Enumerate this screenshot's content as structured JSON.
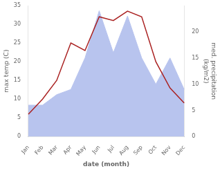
{
  "chart_data": {
    "type": "line",
    "categories": [
      "Jan",
      "Feb",
      "Mar",
      "Apr",
      "May",
      "Jun",
      "Jul",
      "Aug",
      "Sep",
      "Oct",
      "Nov",
      "Dec"
    ],
    "xlabel": "date (month)",
    "ylabel": "max temp (C)",
    "y2label": "med. precipitation\n(kg/m2)",
    "series": [
      {
        "type": "area",
        "color": "#b8c4ee",
        "axis": "y2",
        "values": [
          6.0,
          6.0,
          8.0,
          9.0,
          15.0,
          24.0,
          16.0,
          23.0,
          15.0,
          10.0,
          15.0,
          9.0
        ]
      },
      {
        "type": "line",
        "color": "#aa2222",
        "values": [
          6.0,
          10.0,
          15.0,
          25.0,
          23.0,
          32.0,
          31.0,
          33.5,
          32.0,
          20.0,
          13.0,
          9.0
        ]
      }
    ],
    "ylim": [
      0,
      35
    ],
    "yticks": [
      0,
      5,
      10,
      15,
      20,
      25,
      30,
      35
    ],
    "y2lim": [
      0,
      25
    ],
    "y2ticks": [
      0,
      5,
      10,
      15,
      20
    ],
    "grid": false
  }
}
